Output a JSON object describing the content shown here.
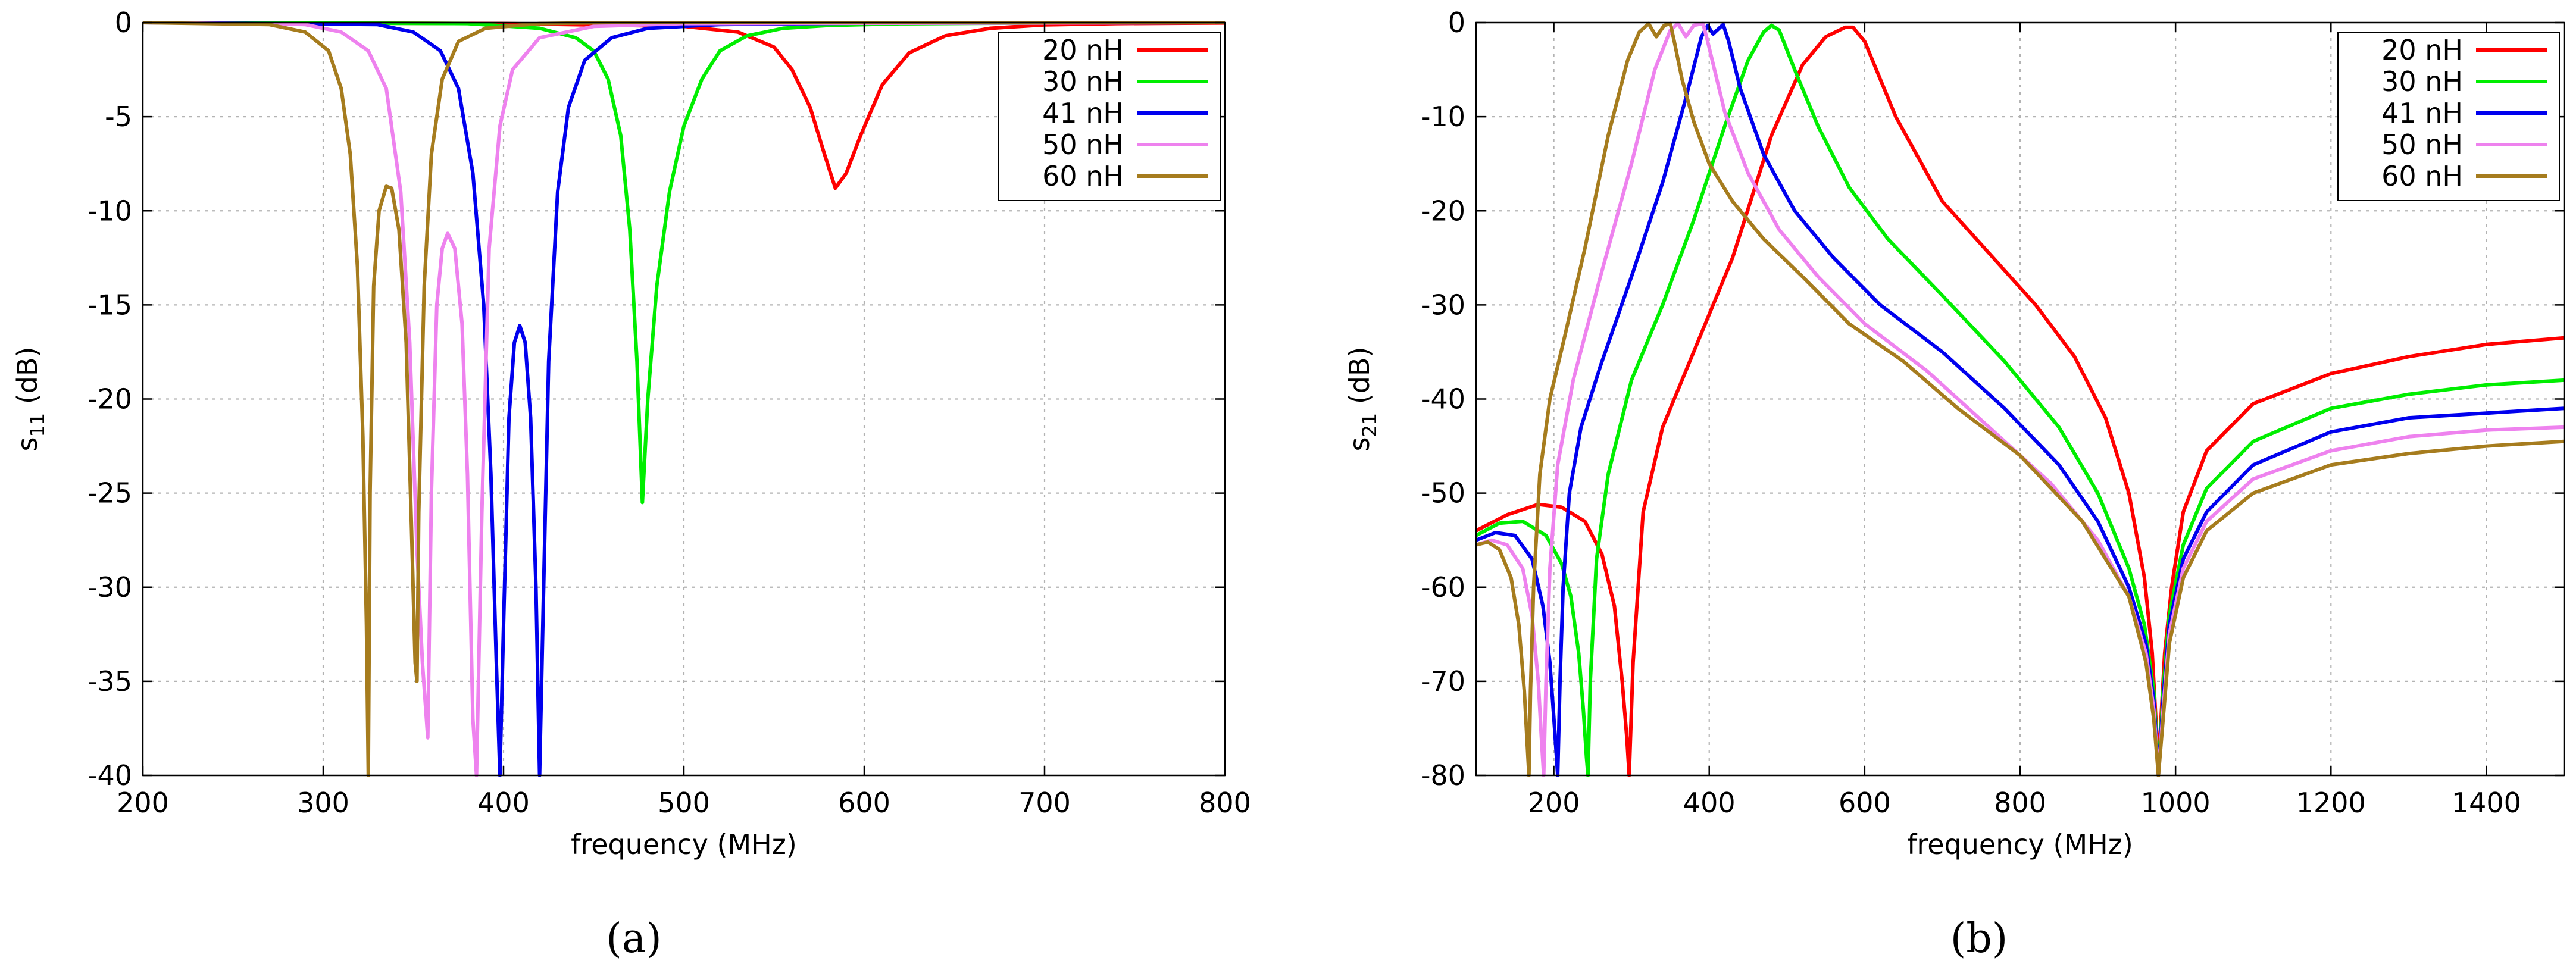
{
  "chart_data": [
    {
      "type": "line",
      "panel_label": "(a)",
      "xlabel": "frequency  (MHz)",
      "ylabel_main": "s",
      "ylabel_sub": "11",
      "ylabel_unit": " (dB)",
      "xlim": [
        200,
        800
      ],
      "ylim": [
        -40,
        0
      ],
      "xticks": [
        200,
        300,
        400,
        500,
        600,
        700,
        800
      ],
      "yticks": [
        0,
        -5,
        -10,
        -15,
        -20,
        -25,
        -30,
        -35,
        -40
      ],
      "xtick_labels": [
        "200",
        "300",
        "400",
        "500",
        "600",
        "700",
        "800"
      ],
      "ytick_labels": [
        "0",
        "-5",
        "-10",
        "-15",
        "-20",
        "-25",
        "-30",
        "-35",
        "-40"
      ],
      "grid": true,
      "legend_position": "top-right",
      "series": [
        {
          "name": "20 nH",
          "color": "#ff0000",
          "x": [
            200,
            400,
            500,
            530,
            550,
            560,
            570,
            578,
            584,
            590,
            598,
            610,
            625,
            645,
            670,
            700,
            740,
            800
          ],
          "y": [
            0,
            -0.05,
            -0.2,
            -0.5,
            -1.3,
            -2.5,
            -4.5,
            -7,
            -8.8,
            -8,
            -6,
            -3.3,
            -1.6,
            -0.7,
            -0.3,
            -0.12,
            -0.05,
            -0.02
          ]
        },
        {
          "name": "30 nH",
          "color": "#00ee00",
          "x": [
            200,
            380,
            420,
            440,
            450,
            458,
            465,
            470,
            474,
            477,
            480,
            485,
            492,
            500,
            510,
            520,
            535,
            555,
            580,
            620,
            700,
            800
          ],
          "y": [
            0,
            -0.05,
            -0.3,
            -0.8,
            -1.5,
            -3,
            -6,
            -11,
            -18,
            -25.5,
            -20,
            -14,
            -9,
            -5.5,
            -3,
            -1.5,
            -0.7,
            -0.3,
            -0.15,
            -0.06,
            -0.02,
            0
          ]
        },
        {
          "name": "41 nH",
          "color": "#0000ee",
          "x": [
            200,
            330,
            350,
            365,
            375,
            383,
            389,
            393,
            396,
            398,
            400,
            403,
            406,
            409,
            412,
            415,
            418,
            420,
            422,
            425,
            430,
            436,
            445,
            460,
            480,
            520,
            600,
            800
          ],
          "y": [
            0,
            -0.1,
            -0.5,
            -1.5,
            -3.5,
            -8,
            -15,
            -24,
            -34,
            -40,
            -32,
            -21,
            -17,
            -16.1,
            -17,
            -21,
            -30,
            -40,
            -31,
            -18,
            -9,
            -4.5,
            -2,
            -0.8,
            -0.3,
            -0.1,
            -0.03,
            0
          ]
        },
        {
          "name": "50 nH",
          "color": "#ee82ee",
          "x": [
            200,
            290,
            310,
            325,
            335,
            343,
            348,
            352,
            355,
            358,
            360,
            363,
            366,
            369,
            373,
            377,
            380,
            383,
            385,
            388,
            392,
            398,
            405,
            420,
            450,
            500,
            800
          ],
          "y": [
            0,
            -0.1,
            -0.5,
            -1.5,
            -3.5,
            -9,
            -17,
            -28,
            -34,
            -38,
            -25,
            -15,
            -12,
            -11.2,
            -12,
            -16,
            -24,
            -37,
            -40,
            -26,
            -12,
            -5.5,
            -2.5,
            -0.8,
            -0.2,
            -0.05,
            0
          ]
        },
        {
          "name": "60 nH",
          "color": "#a67c1e",
          "x": [
            200,
            270,
            290,
            303,
            310,
            315,
            319,
            322,
            324,
            325,
            326,
            328,
            331,
            335,
            338,
            342,
            346,
            349,
            351,
            352,
            353,
            356,
            360,
            366,
            375,
            390,
            420,
            460,
            800
          ],
          "y": [
            0,
            -0.1,
            -0.5,
            -1.5,
            -3.5,
            -7,
            -13,
            -22,
            -32,
            -40,
            -25,
            -14,
            -10,
            -8.7,
            -8.8,
            -11,
            -17,
            -27,
            -34,
            -35,
            -26,
            -14,
            -7,
            -3,
            -1,
            -0.3,
            -0.05,
            0,
            0
          ]
        }
      ]
    },
    {
      "type": "line",
      "panel_label": "(b)",
      "xlabel": "frequency  (MHz)",
      "ylabel_main": "s",
      "ylabel_sub": "21",
      "ylabel_unit": " (dB)",
      "xlim": [
        100,
        1500
      ],
      "ylim": [
        -80,
        0
      ],
      "xticks": [
        200,
        400,
        600,
        800,
        1000,
        1200,
        1400
      ],
      "yticks": [
        0,
        -10,
        -20,
        -30,
        -40,
        -50,
        -60,
        -70,
        -80
      ],
      "xtick_labels": [
        "200",
        "400",
        "600",
        "800",
        "1000",
        "1200",
        "1400"
      ],
      "ytick_labels": [
        "0",
        "-10",
        "-20",
        "-30",
        "-40",
        "-50",
        "-60",
        "-70",
        "-80"
      ],
      "grid": true,
      "legend_position": "top-right",
      "series": [
        {
          "name": "20 nH",
          "color": "#ff0000",
          "x": [
            100,
            140,
            180,
            210,
            240,
            262,
            278,
            288,
            294,
            297,
            302,
            315,
            340,
            380,
            430,
            480,
            520,
            550,
            575,
            585,
            600,
            640,
            700,
            760,
            820,
            870,
            910,
            940,
            960,
            970,
            978,
            986,
            995,
            1010,
            1040,
            1100,
            1200,
            1300,
            1400,
            1500
          ],
          "y": [
            -54,
            -52.3,
            -51.2,
            -51.5,
            -53,
            -56.5,
            -62,
            -70,
            -76,
            -80,
            -68,
            -52,
            -43,
            -35,
            -25,
            -12,
            -4.5,
            -1.5,
            -0.5,
            -0.5,
            -2,
            -10,
            -19,
            -24.5,
            -30,
            -35.5,
            -42,
            -50,
            -59,
            -67,
            -79,
            -67,
            -60,
            -52,
            -45.5,
            -40.5,
            -37.3,
            -35.5,
            -34.2,
            -33.5
          ]
        },
        {
          "name": "30 nH",
          "color": "#00ee00",
          "x": [
            100,
            130,
            160,
            190,
            210,
            222,
            232,
            238,
            242,
            244,
            247,
            255,
            270,
            300,
            340,
            380,
            420,
            450,
            470,
            480,
            490,
            510,
            540,
            580,
            630,
            700,
            780,
            850,
            900,
            940,
            960,
            972,
            978,
            984,
            992,
            1010,
            1040,
            1100,
            1200,
            1300,
            1400,
            1500
          ],
          "y": [
            -54.5,
            -53.2,
            -53,
            -54.5,
            -57.5,
            -61,
            -67,
            -73,
            -78,
            -80,
            -70,
            -57,
            -48,
            -38,
            -30,
            -21,
            -11,
            -4,
            -1,
            -0.3,
            -0.8,
            -5,
            -11,
            -17.5,
            -23,
            -29,
            -36,
            -43,
            -50,
            -58,
            -64,
            -71,
            -80,
            -71,
            -63,
            -55.5,
            -49.5,
            -44.5,
            -41,
            -39.5,
            -38.5,
            -38
          ]
        },
        {
          "name": "41 nH",
          "color": "#0000ee",
          "x": [
            100,
            125,
            150,
            172,
            186,
            195,
            201,
            205,
            208,
            212,
            220,
            235,
            260,
            300,
            340,
            370,
            390,
            398,
            405,
            418,
            425,
            440,
            470,
            510,
            560,
            620,
            700,
            780,
            850,
            900,
            940,
            962,
            972,
            978,
            984,
            992,
            1010,
            1040,
            1100,
            1200,
            1300,
            1400,
            1500
          ],
          "y": [
            -55,
            -54.2,
            -54.5,
            -57,
            -62,
            -68,
            -75,
            -80,
            -70,
            -60,
            -50,
            -43,
            -36.5,
            -27,
            -17,
            -8,
            -1.5,
            -0.3,
            -1.2,
            -0.2,
            -2,
            -7,
            -14,
            -20,
            -25,
            -30,
            -35,
            -41,
            -47,
            -53,
            -60,
            -66,
            -72,
            -80,
            -72,
            -64,
            -57,
            -52,
            -47,
            -43.5,
            -42,
            -41.5,
            -41
          ]
        },
        {
          "name": "50 nH",
          "color": "#ee82ee",
          "x": [
            100,
            120,
            140,
            160,
            172,
            180,
            184,
            187,
            190,
            195,
            205,
            225,
            260,
            300,
            330,
            350,
            360,
            370,
            380,
            392,
            398,
            420,
            450,
            490,
            540,
            600,
            680,
            760,
            840,
            900,
            940,
            962,
            972,
            978,
            984,
            992,
            1010,
            1040,
            1100,
            1200,
            1300,
            1400,
            1500
          ],
          "y": [
            -55.5,
            -55,
            -55.5,
            -58,
            -63,
            -70,
            -76,
            -80,
            -70,
            -58,
            -47,
            -38,
            -27,
            -15,
            -5,
            -0.8,
            -0.1,
            -1.5,
            -0.3,
            -0.1,
            -2,
            -9.5,
            -16,
            -22,
            -27,
            -32,
            -37,
            -43,
            -49,
            -55,
            -61,
            -67,
            -73,
            -80,
            -73,
            -65,
            -58,
            -53,
            -48.5,
            -45.5,
            -44,
            -43.3,
            -43
          ]
        },
        {
          "name": "60 nH",
          "color": "#a67c1e",
          "x": [
            100,
            115,
            130,
            145,
            155,
            162,
            166,
            168,
            170,
            174,
            182,
            195,
            215,
            240,
            270,
            295,
            310,
            322,
            332,
            342,
            350,
            355,
            365,
            380,
            400,
            430,
            470,
            520,
            580,
            650,
            720,
            800,
            880,
            940,
            962,
            972,
            978,
            984,
            992,
            1010,
            1040,
            1100,
            1200,
            1300,
            1400,
            1500
          ],
          "y": [
            -55.5,
            -55.2,
            -56,
            -59,
            -64,
            -71,
            -77,
            -80,
            -71,
            -60,
            -48,
            -40,
            -33,
            -24,
            -12,
            -4,
            -1,
            -0.1,
            -1.5,
            -0.3,
            -0.1,
            -2,
            -6,
            -10.5,
            -15,
            -19,
            -23,
            -27,
            -32,
            -36,
            -41,
            -46,
            -53,
            -61,
            -68,
            -74,
            -80,
            -74,
            -66,
            -59,
            -54,
            -50,
            -47,
            -45.8,
            -45,
            -44.5
          ]
        }
      ]
    }
  ]
}
